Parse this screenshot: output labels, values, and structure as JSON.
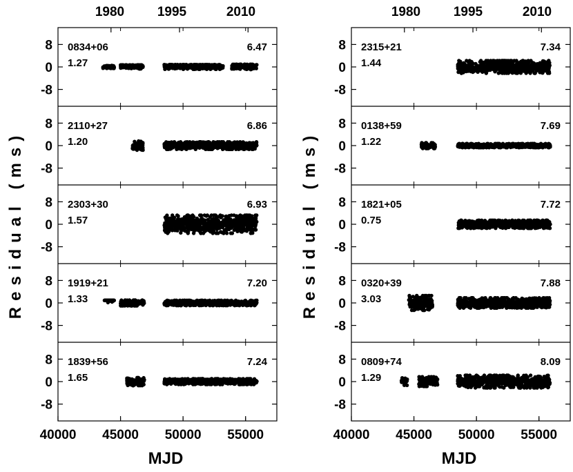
{
  "xlabel": "MJD",
  "ylabel": "Residual (ms)",
  "top_axis_labels": [
    "1980",
    "1995",
    "2010"
  ],
  "chart_data": [
    {
      "type": "scatter",
      "column": "left",
      "xlabel": "MJD",
      "ylabel": "Residual (ms)",
      "xlim": [
        40000,
        57500
      ],
      "ylim": [
        -14,
        14
      ],
      "x_ticks": [
        40000,
        45000,
        50000,
        55000
      ],
      "y_ticks": [
        8,
        0,
        -8
      ],
      "top_ticks": {
        "labels": [
          "1980",
          "1995",
          "2010"
        ],
        "mjd": [
          44239,
          49718,
          55197
        ]
      },
      "panels": [
        {
          "name": "0834+06",
          "value_left": "1.27",
          "value_right": "6.47",
          "segments": [
            [
              43600,
              44500,
              0,
              0.5
            ],
            [
              45000,
              46800,
              0.2,
              0.7
            ],
            [
              48500,
              53200,
              0.1,
              0.8
            ],
            [
              53900,
              55900,
              0.2,
              0.9
            ]
          ]
        },
        {
          "name": "2110+27",
          "value_left": "1.20",
          "value_right": "6.86",
          "segments": [
            [
              45900,
              46800,
              0,
              1.6
            ],
            [
              48500,
              55900,
              0,
              1.3
            ]
          ]
        },
        {
          "name": "2303+30",
          "value_left": "1.57",
          "value_right": "6.93",
          "segments": [
            [
              48500,
              55900,
              0,
              3.2
            ]
          ]
        },
        {
          "name": "1919+21",
          "value_left": "1.33",
          "value_right": "7.20",
          "segments": [
            [
              43700,
              44500,
              1.2,
              0.9
            ],
            [
              45000,
              46900,
              0,
              1.0
            ],
            [
              48500,
              55900,
              0,
              0.9
            ]
          ]
        },
        {
          "name": "1839+56",
          "value_left": "1.65",
          "value_right": "7.24",
          "segments": [
            [
              45500,
              46900,
              0,
              1.4
            ],
            [
              48500,
              55900,
              0,
              1.0
            ]
          ]
        }
      ]
    },
    {
      "type": "scatter",
      "column": "right",
      "xlabel": "MJD",
      "ylabel": "Residual (ms)",
      "xlim": [
        40000,
        57500
      ],
      "ylim": [
        -14,
        14
      ],
      "x_ticks": [
        40000,
        45000,
        50000,
        55000
      ],
      "y_ticks": [
        8,
        0,
        -8
      ],
      "top_ticks": {
        "labels": [
          "1980",
          "1995",
          "2010"
        ],
        "mjd": [
          44239,
          49718,
          55197
        ]
      },
      "panels": [
        {
          "name": "2315+21",
          "value_left": "1.44",
          "value_right": "7.34",
          "segments": [
            [
              48500,
              55900,
              0,
              2.2
            ]
          ]
        },
        {
          "name": "0138+59",
          "value_left": "1.22",
          "value_right": "7.69",
          "segments": [
            [
              45600,
              46700,
              0,
              1.0
            ],
            [
              48500,
              55900,
              0,
              0.7
            ]
          ]
        },
        {
          "name": "1821+05",
          "value_left": "0.75",
          "value_right": "7.72",
          "segments": [
            [
              48500,
              55900,
              0,
              1.4
            ]
          ]
        },
        {
          "name": "0320+39",
          "value_left": "3.03",
          "value_right": "7.88",
          "segments": [
            [
              44600,
              46500,
              0,
              2.6
            ],
            [
              48500,
              55900,
              0,
              1.8
            ]
          ]
        },
        {
          "name": "0809+74",
          "value_left": "1.29",
          "value_right": "8.09",
          "segments": [
            [
              44000,
              44500,
              0,
              1.3
            ],
            [
              45400,
              46900,
              0,
              1.7
            ],
            [
              48500,
              55900,
              0,
              2.2
            ]
          ]
        }
      ]
    }
  ]
}
